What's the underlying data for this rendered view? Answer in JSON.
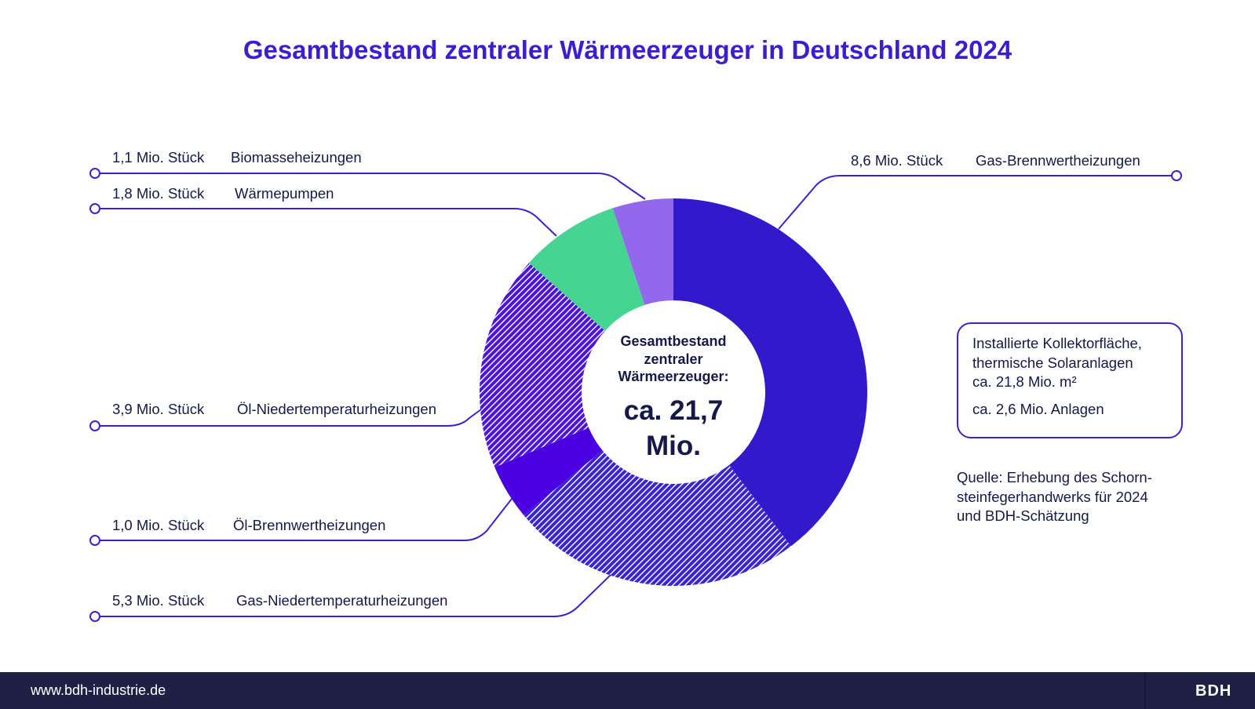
{
  "chart_data": {
    "type": "pie",
    "variant": "donut",
    "title": "Gesamtbestand zentraler Wärmeerzeuger in Deutschland 2024",
    "unit": "Mio. Stück",
    "start": "top",
    "direction": "clockwise",
    "categories": [
      "Gas-Brennwertheizungen",
      "Gas-Niedertemperaturheizungen",
      "Öl-Brennwertheizungen",
      "Öl-Niedertemperaturheizungen",
      "Wärmepumpen",
      "Biomasseheizungen"
    ],
    "values": [
      8.6,
      5.3,
      1.0,
      3.9,
      1.8,
      1.1
    ],
    "value_labels": [
      "8,6 Mio. Stück",
      "5,3 Mio. Stück",
      "1,0 Mio. Stück",
      "3,9 Mio. Stück",
      "1,8 Mio. Stück",
      "1,1 Mio. Stück"
    ],
    "colors": [
      "#3219cb",
      "#3a24d2",
      "#4a00e0",
      "#4a14dd",
      "#46d492",
      "#9468ec"
    ],
    "hatched": [
      false,
      true,
      false,
      true,
      false,
      false
    ],
    "center_label": {
      "lines": [
        "Gesamtbestand",
        "zentraler",
        "Wärmeerzeuger:"
      ],
      "total": "ca. 21,7",
      "total_unit": "Mio."
    }
  },
  "info_box": {
    "lines": [
      "Installierte Kollektorfläche,",
      "thermische Solaranlagen",
      "ca. 21,8 Mio. m²"
    ],
    "extra": "ca. 2,6 Mio. Anlagen"
  },
  "source": {
    "lines": [
      "Quelle: Erhebung des Schorn-",
      "steinfegerhandwerks für 2024",
      "und BDH-Schätzung"
    ]
  },
  "footer": {
    "url": "www.bdh-industrie.de",
    "logo": "BDH"
  },
  "colors": {
    "title": "#3a1fd0",
    "leader": "#3a22d0",
    "text": "#14184a",
    "footer_bg": "#1e2046"
  }
}
